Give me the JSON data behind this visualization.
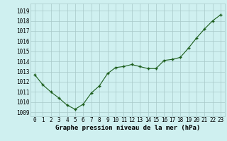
{
  "x": [
    0,
    1,
    2,
    3,
    4,
    5,
    6,
    7,
    8,
    9,
    10,
    11,
    12,
    13,
    14,
    15,
    16,
    17,
    18,
    19,
    20,
    21,
    22,
    23
  ],
  "y": [
    1012.7,
    1011.7,
    1011.0,
    1010.4,
    1009.7,
    1009.3,
    1009.8,
    1010.9,
    1011.6,
    1012.8,
    1013.4,
    1013.5,
    1013.7,
    1013.5,
    1013.3,
    1013.3,
    1014.1,
    1014.2,
    1014.4,
    1015.3,
    1016.3,
    1017.2,
    1018.0,
    1018.6
  ],
  "ylim": [
    1008.6,
    1019.7
  ],
  "yticks": [
    1009,
    1010,
    1011,
    1012,
    1013,
    1014,
    1015,
    1016,
    1017,
    1018,
    1019
  ],
  "xticks": [
    0,
    1,
    2,
    3,
    4,
    5,
    6,
    7,
    8,
    9,
    10,
    11,
    12,
    13,
    14,
    15,
    16,
    17,
    18,
    19,
    20,
    21,
    22,
    23
  ],
  "xlabel": "Graphe pression niveau de la mer (hPa)",
  "line_color": "#1a5c1a",
  "marker": "+",
  "marker_size": 3,
  "marker_edge_width": 1.0,
  "line_width": 0.8,
  "bg_color": "#cff0f0",
  "grid_color": "#a8c8c8",
  "tick_fontsize": 5.5,
  "xlabel_fontsize": 6.5
}
